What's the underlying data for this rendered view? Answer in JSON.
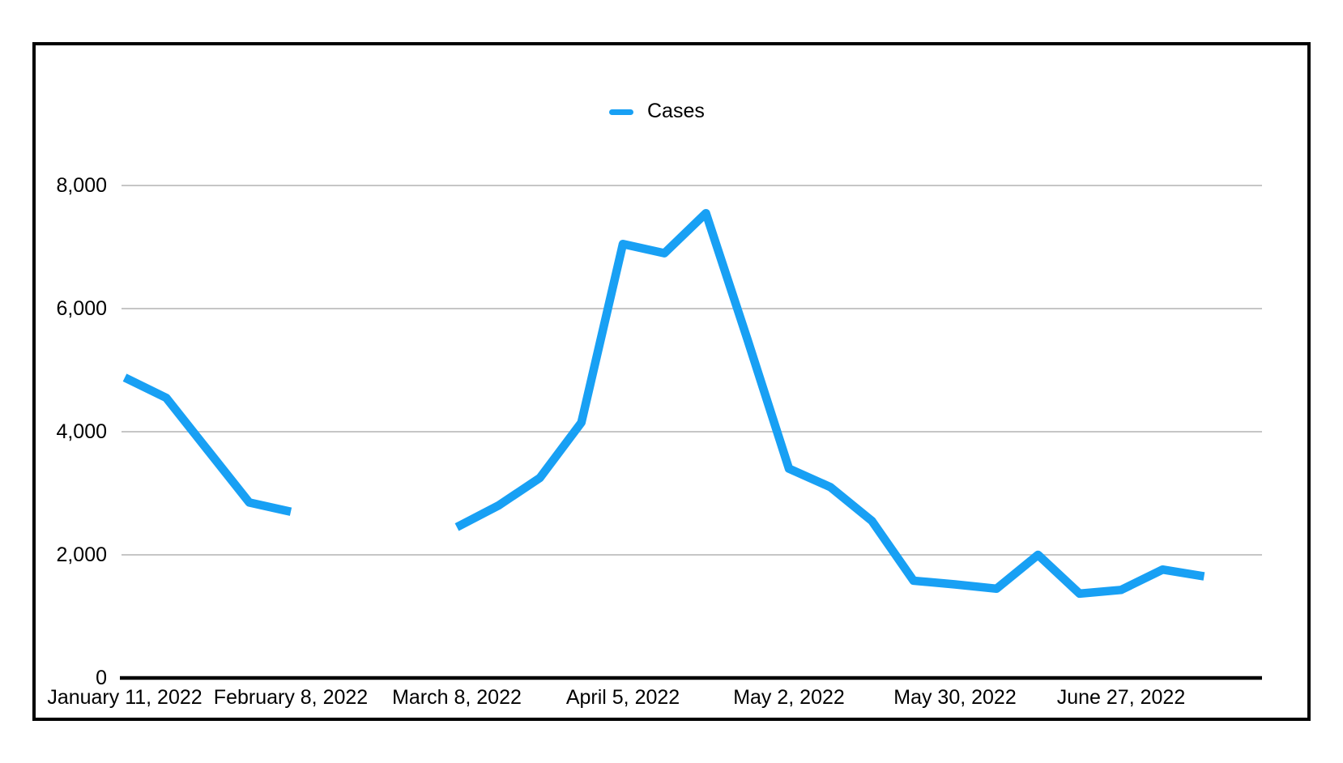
{
  "page": {
    "background": "#FFFFFF"
  },
  "frame": {
    "border_color": "#000000"
  },
  "legend": {
    "label": "Cases"
  },
  "chart_data": {
    "type": "line",
    "title": "",
    "legend_position": "top-center",
    "grid": true,
    "num_points": 27,
    "x_tick_labels": [
      "January 11, 2022",
      "February 8, 2022",
      "March 8, 2022",
      "April 5, 2022",
      "May 2, 2022",
      "May 30, 2022",
      "June 27, 2022"
    ],
    "x_tick_indices": [
      0,
      4,
      8,
      12,
      16,
      20,
      24
    ],
    "y_tick_labels": [
      "0",
      "2,000",
      "4,000",
      "6,000",
      "8,000"
    ],
    "y_tick_values": [
      0,
      2000,
      4000,
      6000,
      8000
    ],
    "ylim": [
      0,
      8000
    ],
    "gap_point_indices": [
      5,
      6,
      7
    ],
    "series": [
      {
        "name": "Cases",
        "color": "#18A0F4",
        "values": [
          4880,
          4550,
          3700,
          2850,
          2700,
          null,
          null,
          null,
          2450,
          2800,
          3250,
          4150,
          7050,
          6900,
          7550,
          5500,
          3400,
          3100,
          2550,
          1580,
          1520,
          1450,
          2000,
          1370,
          1430,
          1760,
          1650
        ]
      }
    ],
    "colors": {
      "line": "#18A0F4",
      "gridline": "#C6C6C6",
      "axis": "#000000",
      "text": "#000000",
      "background": "#FFFFFF"
    }
  }
}
